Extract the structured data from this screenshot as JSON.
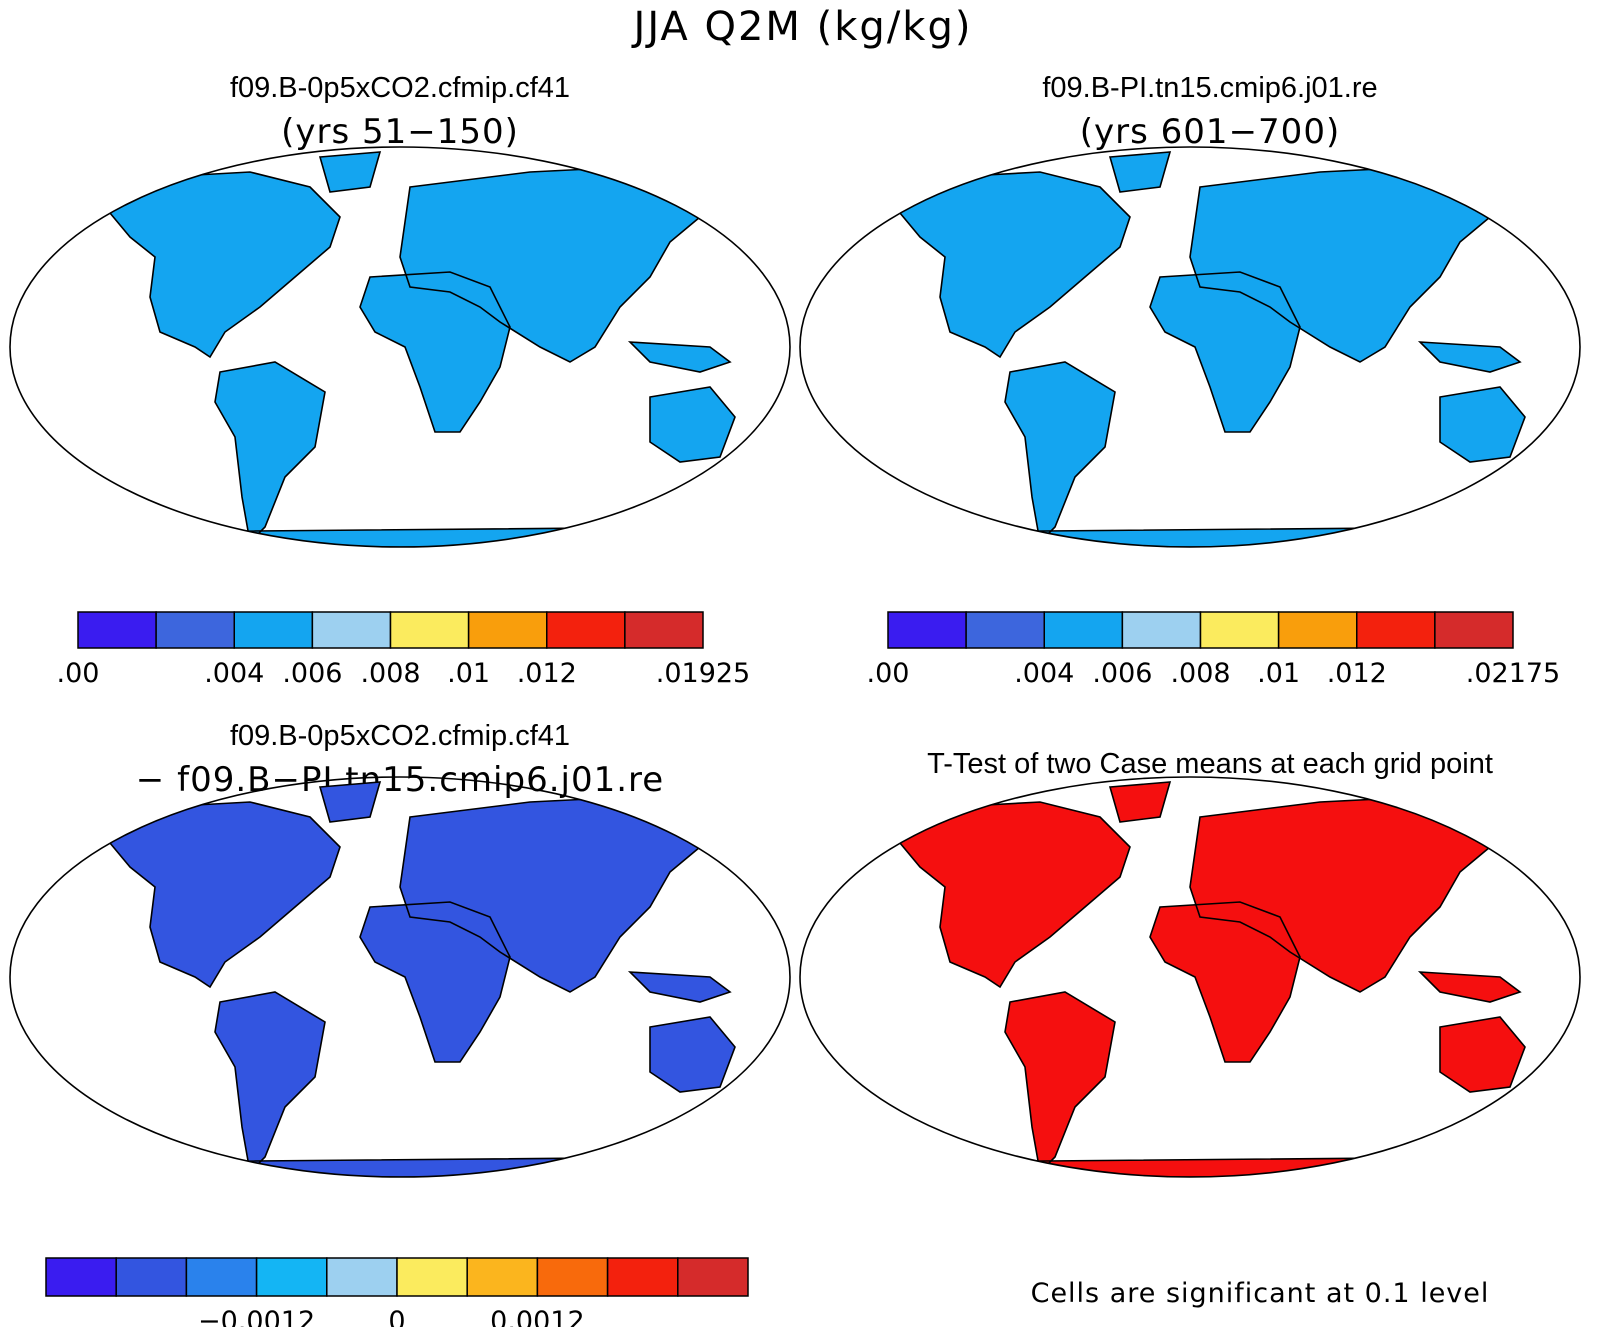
{
  "figure": {
    "title": "JJA Q2M (kg/kg)"
  },
  "panels": {
    "top_left": {
      "title": "f09.B-0p5xCO2.cfmip.cf41",
      "subtitle": "(yrs 51−150)",
      "colorbar": {
        "colors": [
          "#3a1cf0",
          "#3d66dd",
          "#14a5f0",
          "#9dd0f0",
          "#fbeb5e",
          "#f99e0c",
          "#f3210d",
          "#d52b2b"
        ],
        "labels": [
          ".00",
          ".004",
          ".006",
          ".008",
          ".01",
          ".012",
          ".01925"
        ],
        "label_positions": [
          0,
          2,
          3,
          4,
          5,
          6,
          8
        ]
      }
    },
    "top_right": {
      "title": "f09.B-PI.tn15.cmip6.j01.re",
      "subtitle": "(yrs 601−700)",
      "colorbar": {
        "colors": [
          "#3a1cf0",
          "#3d66dd",
          "#14a5f0",
          "#9dd0f0",
          "#fbeb5e",
          "#f99e0c",
          "#f3210d",
          "#d52b2b"
        ],
        "labels": [
          ".00",
          ".004",
          ".006",
          ".008",
          ".01",
          ".012",
          ".02175"
        ],
        "label_positions": [
          0,
          2,
          3,
          4,
          5,
          6,
          8
        ]
      }
    },
    "bottom_left": {
      "title": "f09.B-0p5xCO2.cfmip.cf41",
      "subtitle": "− f09.B−PI.tn15.cmip6.j01.re",
      "colorbar": {
        "colors": [
          "#3a1cf0",
          "#3355e0",
          "#2a82ec",
          "#14b5f4",
          "#9dd0f0",
          "#fbeb5e",
          "#fbb51e",
          "#f86a0c",
          "#f3210d",
          "#d52b2b"
        ],
        "labels": [
          "−0.0012",
          "0",
          "0.0012"
        ],
        "label_positions": [
          3,
          5,
          7
        ]
      }
    },
    "bottom_right": {
      "title": "T-Test of two Case means at each grid point",
      "note": "Cells are significant at 0.1 level",
      "fill_color": "#f50f0f"
    }
  }
}
